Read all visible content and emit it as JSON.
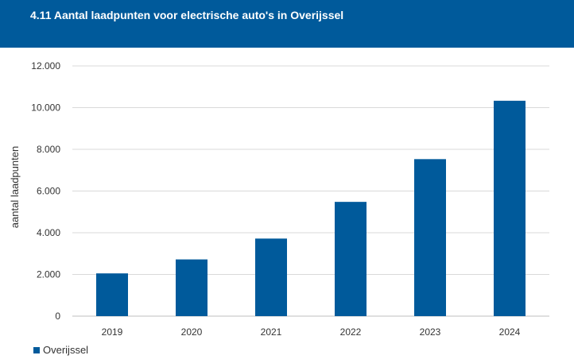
{
  "header": {
    "title": "4.11 Aantal laadpunten voor electrische auto's in Overijssel"
  },
  "colors": {
    "header_bg": "#005a9b",
    "bar": "#005a9b",
    "grid": "#d9d9d9"
  },
  "chart_data": {
    "type": "bar",
    "categories": [
      "2019",
      "2020",
      "2021",
      "2022",
      "2023",
      "2024"
    ],
    "series": [
      {
        "name": "Overijssel",
        "values": [
          2050,
          2720,
          3720,
          5480,
          7530,
          10330
        ]
      }
    ],
    "title": "",
    "xlabel": "",
    "ylabel": "aantal laadpunten",
    "ylim": [
      0,
      12000
    ],
    "yticks": [
      "0",
      "2.000",
      "4.000",
      "6.000",
      "8.000",
      "10.000",
      "12.000"
    ],
    "grid": true,
    "legend": "bottom-left"
  }
}
